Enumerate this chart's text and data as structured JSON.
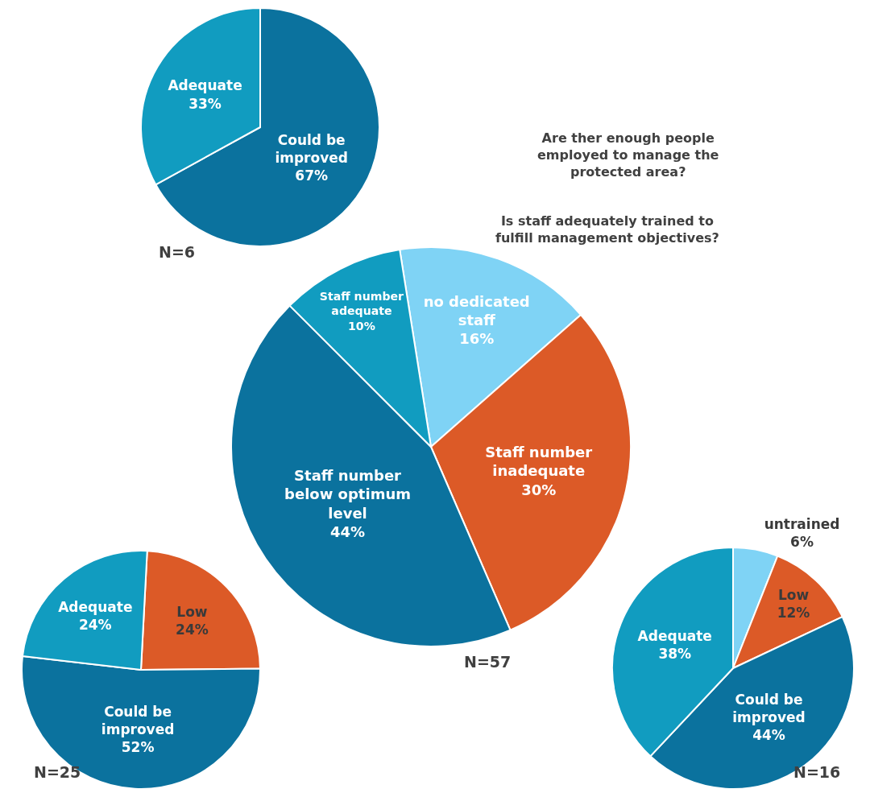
{
  "chart_data": [
    {
      "type": "pie",
      "categories": [
        "Could be improved",
        "Adequate"
      ],
      "values": [
        67,
        33
      ],
      "value_labels": [
        "67%",
        "33%"
      ],
      "colors": [
        "#0b729e",
        "#119cc0"
      ],
      "annotations": [
        "N=6"
      ],
      "legend": false
    },
    {
      "type": "pie",
      "categories": [
        "no dedicated staff",
        "Staff number inadequate",
        "Staff number below optimum level",
        "Staff number adequate"
      ],
      "values": [
        16,
        30,
        44,
        10
      ],
      "value_labels": [
        "16%",
        "30%",
        "44%",
        "10%"
      ],
      "colors": [
        "#7fd3f5",
        "#dc5a27",
        "#0b729e",
        "#119cc0"
      ],
      "annotations": [
        "N=57",
        "Are ther enough people employed to manage the protected area?",
        "Is staff adequately trained to fulfill management objectives?"
      ],
      "legend": false
    },
    {
      "type": "pie",
      "categories": [
        "Low",
        "Could be improved",
        "Adequate"
      ],
      "values": [
        24,
        52,
        24
      ],
      "value_labels": [
        "24%",
        "52%",
        "24%"
      ],
      "colors": [
        "#dc5a27",
        "#0b729e",
        "#119cc0"
      ],
      "annotations": [
        "N=25"
      ],
      "legend": false
    },
    {
      "type": "pie",
      "categories": [
        "untrained",
        "Low",
        "Could be improved",
        "Adequate"
      ],
      "values": [
        6,
        12,
        44,
        38
      ],
      "value_labels": [
        "6%",
        "12%",
        "44%",
        "38%"
      ],
      "colors": [
        "#7fd3f5",
        "#dc5a27",
        "#0b729e",
        "#119cc0"
      ],
      "annotations": [
        "N=16"
      ],
      "legend": false
    }
  ]
}
